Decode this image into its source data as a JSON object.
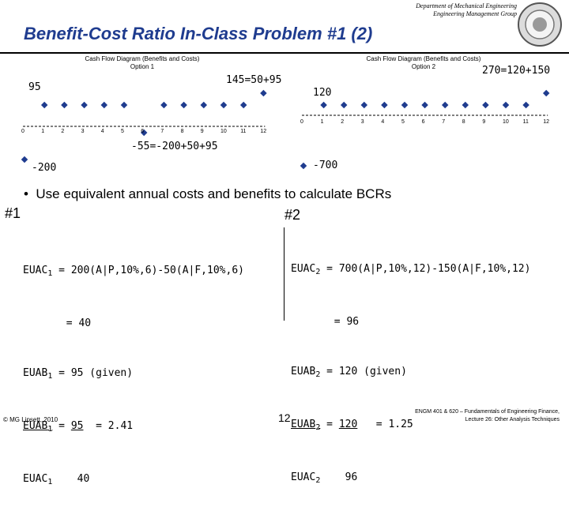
{
  "header": {
    "dept_line1": "Department of Mechanical Engineering",
    "dept_line2": "Engineering Management Group",
    "title": "Benefit-Cost Ratio In-Class Problem #1 (2)"
  },
  "diagram1": {
    "title_line1": "Cash Flow Diagram (Benefits and Costs)",
    "title_line2": "Option 1",
    "ticks": [
      "0",
      "1",
      "2",
      "3",
      "4",
      "5",
      "6",
      "7",
      "8",
      "9",
      "10",
      "11",
      "12"
    ],
    "label_annual": "95",
    "label_resale": "145=50+95",
    "label_repl": "-55=-200+50+95",
    "label_initial": "-200"
  },
  "diagram2": {
    "title_line1": "Cash Flow Diagram (Benefits and Costs)",
    "title_line2": "Option 2",
    "ticks": [
      "0",
      "1",
      "2",
      "3",
      "4",
      "5",
      "6",
      "7",
      "8",
      "9",
      "10",
      "11",
      "12"
    ],
    "label_annual": "120",
    "label_final": "270=120+150",
    "label_initial": "-700"
  },
  "bullet": "Use equivalent annual costs and benefits to calculate BCRs",
  "left": {
    "heading": "#1",
    "line1_name": "EUAC",
    "line1_sub": "1",
    "line1_rest": " = 200(A|P,10%,6)-50(A|F,10%,6)",
    "line2": "       = 40",
    "line3_name": "EUAB",
    "line3_sub": "1",
    "line3_rest": " = 95 (given)",
    "ratio_num_name": "EUAB",
    "ratio_num_sub": "1",
    "ratio_eq": " = ",
    "ratio_num_val": "95",
    "ratio_result": "  = 2.41",
    "ratio_den_name": "EUAC",
    "ratio_den_sub": "1",
    "ratio_den_val": "    40"
  },
  "right": {
    "heading": "#2",
    "line1_name": "EUAC",
    "line1_sub": "2",
    "line1_rest": " = 700(A|P,10%,12)-150(A|F,10%,12)",
    "line2": "       = 96",
    "line3_name": "EUAB",
    "line3_sub": "2",
    "line3_rest": " = 120 (given)",
    "ratio_num_name": "EUAB",
    "ratio_num_sub": "2",
    "ratio_eq": " = ",
    "ratio_num_val": "120",
    "ratio_result": "   = 1.25",
    "ratio_den_name": "EUAC",
    "ratio_den_sub": "2",
    "ratio_den_val": "    96"
  },
  "footer": {
    "copyright": "© MG Lipsett, 2010",
    "page": "12",
    "course_line1": "ENGM 401 & 620 – Fundamentals of Engineering Finance,",
    "course_line2": "Lecture 26: Other Analysis Techniques"
  },
  "colors": {
    "title": "#1f3c8f",
    "marker": "#1f3c8f"
  }
}
